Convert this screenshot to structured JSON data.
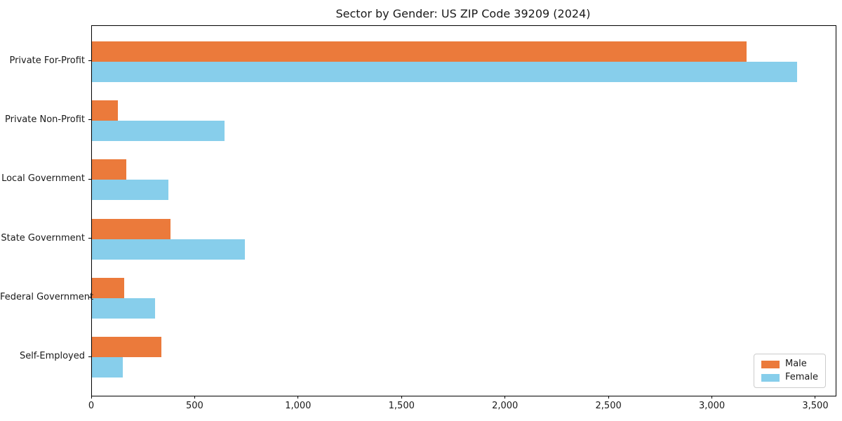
{
  "chart_data": {
    "type": "bar",
    "orientation": "horizontal",
    "title": "Sector by Gender: US ZIP Code 39209 (2024)",
    "xlabel": "",
    "ylabel": "",
    "categories": [
      "Private For-Profit",
      "Private Non-Profit",
      "Local Government",
      "State Government",
      "Federal Government",
      "Self-Employed"
    ],
    "series": [
      {
        "name": "Male",
        "color": "#eb7a3b",
        "values": [
          3165,
          125,
          165,
          380,
          155,
          335
        ]
      },
      {
        "name": "Female",
        "color": "#87ceeb",
        "values": [
          3410,
          640,
          370,
          740,
          305,
          150
        ]
      }
    ],
    "xlim": [
      0,
      3595
    ],
    "xticks": [
      0,
      500,
      1000,
      1500,
      2000,
      2500,
      3000,
      3500
    ],
    "xtick_labels": [
      "0",
      "500",
      "1,000",
      "1,500",
      "2,000",
      "2,500",
      "3,000",
      "3,500"
    ],
    "grid": false,
    "legend_position": "lower right"
  }
}
